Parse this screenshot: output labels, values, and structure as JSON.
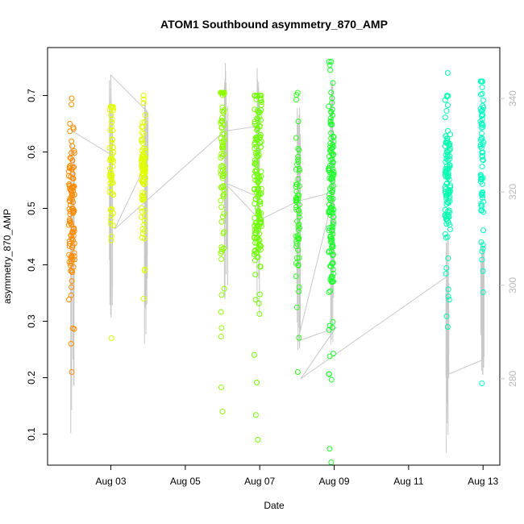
{
  "chart_data": {
    "type": "scatter",
    "title": "ATOM1 Southbound asymmetry_870_AMP",
    "xlabel": "Date",
    "ylabel": "asymmetry_870_AMP",
    "x_tick_labels": [
      "Aug 03",
      "Aug 05",
      "Aug 07",
      "Aug 09",
      "Aug 11",
      "Aug 13"
    ],
    "x_tick_dates": [
      3,
      5,
      7,
      9,
      11,
      13
    ],
    "xlim": [
      1.3,
      13.45
    ],
    "y_ticks": [
      0.1,
      0.2,
      0.3,
      0.4,
      0.5,
      0.6,
      0.7
    ],
    "ylim": [
      0.045,
      0.785
    ],
    "right_axis_ticks": [
      280,
      300,
      320,
      340
    ],
    "right_axis_lim": [
      261.5,
      350.9
    ],
    "right_axis_color": "#c8c8c8",
    "grid": false,
    "legend": "none",
    "series": [
      {
        "color": "#ff8c00",
        "x_center": 1.95,
        "x_spread": 0.08,
        "y_min": 0.21,
        "y_max": 0.695,
        "y_center": 0.5,
        "count": 110
      },
      {
        "color": "#e0ff00",
        "x_center": 3.02,
        "x_spread": 0.05,
        "y_min": 0.27,
        "y_max": 0.68,
        "y_center": 0.57,
        "count": 60
      },
      {
        "color": "#e0ff00",
        "x_center": 3.88,
        "x_spread": 0.06,
        "y_min": 0.34,
        "y_max": 0.7,
        "y_center": 0.56,
        "count": 90
      },
      {
        "color": "#90ff00",
        "x_center": 6.0,
        "x_spread": 0.05,
        "y_min": 0.14,
        "y_max": 0.705,
        "y_center": 0.6,
        "count": 80
      },
      {
        "color": "#70ff00",
        "x_center": 6.95,
        "x_spread": 0.1,
        "y_min": 0.09,
        "y_max": 0.7,
        "y_center": 0.55,
        "count": 160
      },
      {
        "color": "#30ff20",
        "x_center": 8.02,
        "x_spread": 0.05,
        "y_min": 0.21,
        "y_max": 0.705,
        "y_center": 0.5,
        "count": 60
      },
      {
        "color": "#20ff30",
        "x_center": 8.92,
        "x_spread": 0.07,
        "y_min": 0.05,
        "y_max": 0.76,
        "y_center": 0.5,
        "count": 140
      },
      {
        "color": "#00ffb0",
        "x_center": 12.05,
        "x_spread": 0.07,
        "y_min": 0.29,
        "y_max": 0.74,
        "y_center": 0.55,
        "count": 110
      },
      {
        "color": "#00ffc0",
        "x_center": 12.97,
        "x_spread": 0.04,
        "y_min": 0.19,
        "y_max": 0.725,
        "y_center": 0.6,
        "count": 70
      }
    ],
    "secondary_line": {
      "color": "#c8c8c8",
      "name": "",
      "path": [
        [
          1.97,
          333
        ],
        [
          3.0,
          328
        ],
        [
          3.0,
          345
        ],
        [
          4.0,
          337
        ],
        [
          4.0,
          327
        ],
        [
          3.1,
          312
        ],
        [
          6.05,
          333
        ],
        [
          6.9,
          334
        ],
        [
          6.95,
          319
        ],
        [
          6.05,
          322
        ],
        [
          7.0,
          314
        ],
        [
          8.02,
          318
        ],
        [
          9.0,
          320
        ],
        [
          8.02,
          288
        ],
        [
          9.05,
          291
        ],
        [
          8.1,
          280
        ],
        [
          12.05,
          302
        ],
        [
          12.08,
          281
        ],
        [
          12.98,
          284
        ],
        [
          12.98,
          307
        ]
      ],
      "spike_clusters": [
        {
          "x": 1.97,
          "low": 268,
          "high": 331
        },
        {
          "x": 3.0,
          "low": 291,
          "high": 345
        },
        {
          "x": 3.95,
          "low": 287,
          "high": 340
        },
        {
          "x": 6.1,
          "low": 294,
          "high": 349
        },
        {
          "x": 6.95,
          "low": 293,
          "high": 347
        },
        {
          "x": 8.05,
          "low": 285,
          "high": 342
        },
        {
          "x": 8.95,
          "low": 286,
          "high": 344
        },
        {
          "x": 12.05,
          "low": 263,
          "high": 311
        },
        {
          "x": 12.98,
          "low": 280,
          "high": 310
        }
      ]
    }
  }
}
